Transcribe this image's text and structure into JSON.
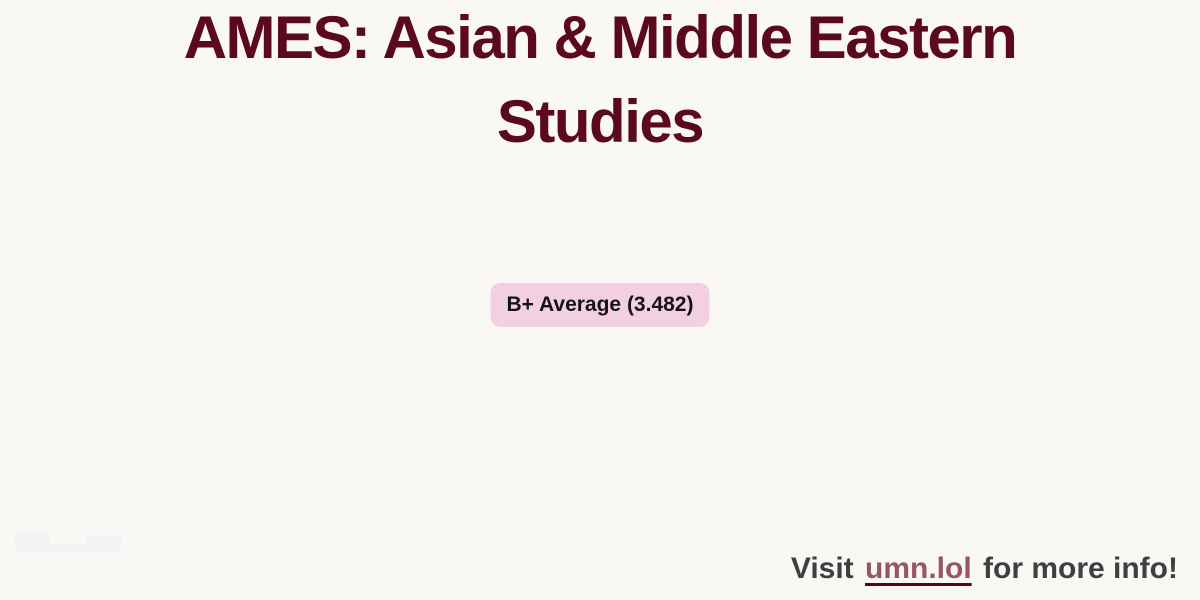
{
  "colors": {
    "background": "#faf8f5",
    "title": "#5b0a1e",
    "badge-bg": "#f2cfe3",
    "badge-text": "#141414",
    "footer-text": "#3f3f3f",
    "link-text": "#96566a",
    "link-underline": "#5c0018",
    "placeholder": "#f5f2f5"
  },
  "header": {
    "title": "AMES: Asian & Middle Eastern Studies"
  },
  "main": {
    "badge": {
      "label": "B+ Average (3.482)",
      "grade": "B+",
      "average": "3.482"
    }
  },
  "footer": {
    "prefix": "Visit",
    "link_text": "umn.lol",
    "suffix": "for more info!"
  }
}
